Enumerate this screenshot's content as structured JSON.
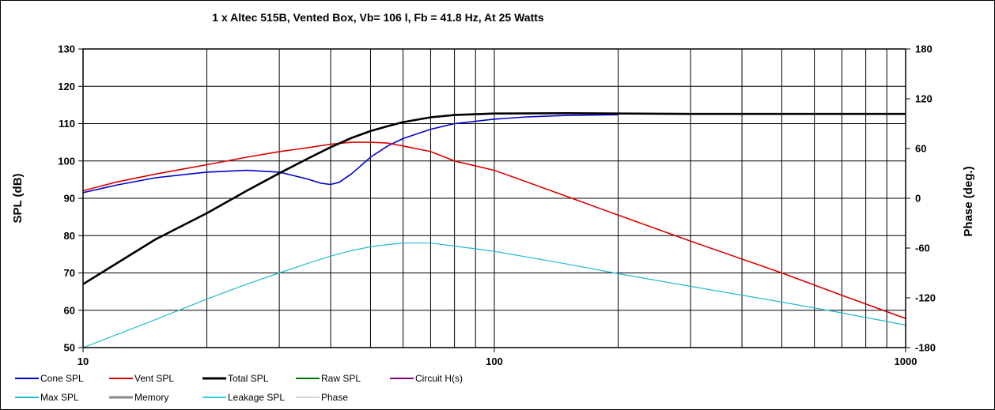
{
  "chart_data": {
    "type": "line",
    "title": "1 x Altec 515B,  Vented Box, Vb= 106 l,  Fb = 41.8 Hz,  At 25 Watts",
    "xlabel": "",
    "ylabel": "SPL (dB)",
    "y2label": "Phase (deg.)",
    "xscale": "log",
    "xlim": [
      10,
      1000
    ],
    "ylim": [
      50,
      130
    ],
    "y2lim": [
      -180,
      180
    ],
    "x_tick_labels": [
      "10",
      "100",
      "1000"
    ],
    "x_ticks": [
      10,
      100,
      1000
    ],
    "y_ticks": [
      50,
      60,
      70,
      80,
      90,
      100,
      110,
      120,
      130
    ],
    "y2_ticks": [
      -180,
      -120,
      -60,
      0,
      60,
      120,
      180
    ],
    "grid": true,
    "legend_position": "bottom",
    "legend": [
      {
        "name": "Cone SPL",
        "color": "#0000cc"
      },
      {
        "name": "Vent SPL",
        "color": "#dd0000"
      },
      {
        "name": "Total SPL",
        "color": "#000000"
      },
      {
        "name": "Raw SPL",
        "color": "#007700"
      },
      {
        "name": "Circuit H(s)",
        "color": "#800080"
      },
      {
        "name": "Max SPL",
        "color": "#22bbcc"
      },
      {
        "name": "Memory",
        "color": "#888888"
      },
      {
        "name": "Leakage SPL",
        "color": "#33ccee"
      },
      {
        "name": "Phase",
        "color": "#aaaaaa"
      }
    ],
    "series": [
      {
        "name": "Cone SPL",
        "color": "#0000cc",
        "width": 1.6,
        "x": [
          10,
          12,
          15,
          20,
          25,
          30,
          35,
          38,
          40,
          42,
          45,
          50,
          55,
          60,
          70,
          80,
          100,
          120,
          150,
          200
        ],
        "y": [
          91.5,
          93.5,
          95.5,
          97,
          97.5,
          97,
          95.2,
          94,
          93.7,
          94.3,
          96.6,
          101,
          104,
          106,
          108.5,
          110,
          111.2,
          111.8,
          112.2,
          112.4
        ]
      },
      {
        "name": "Vent SPL",
        "color": "#dd0000",
        "width": 1.6,
        "x": [
          10,
          12,
          15,
          20,
          25,
          30,
          35,
          40,
          45,
          50,
          55,
          60,
          70,
          80,
          100,
          150,
          200,
          300,
          500,
          700,
          1000
        ],
        "y": [
          92,
          94.3,
          96.5,
          99,
          101,
          102.5,
          103.5,
          104.5,
          105,
          105,
          104.8,
          104,
          102.5,
          100,
          97.5,
          90.5,
          85.5,
          78.5,
          70,
          64,
          57.8
        ]
      },
      {
        "name": "Total SPL",
        "color": "#000000",
        "width": 2.6,
        "x": [
          10,
          15,
          20,
          25,
          30,
          35,
          40,
          45,
          50,
          55,
          60,
          70,
          80,
          100,
          150,
          200,
          300,
          500,
          1000
        ],
        "y": [
          67,
          79,
          86,
          92,
          96.7,
          100.5,
          103.7,
          106.2,
          108,
          109.3,
          110.4,
          111.7,
          112.3,
          112.7,
          112.8,
          112.7,
          112.6,
          112.6,
          112.6
        ]
      },
      {
        "name": "Max SPL",
        "color": "#22bbcc",
        "width": 1.2,
        "x": [
          10,
          15,
          20,
          25,
          30,
          35,
          40,
          45,
          50,
          55,
          60,
          70,
          80,
          100,
          150,
          200,
          300,
          500,
          700,
          1000
        ],
        "y": [
          50,
          57.5,
          63,
          67,
          70,
          72.5,
          74.5,
          76,
          77,
          77.6,
          78,
          78,
          77.2,
          75.8,
          72.4,
          69.8,
          66.4,
          62.2,
          59.3,
          56
        ]
      }
    ]
  }
}
